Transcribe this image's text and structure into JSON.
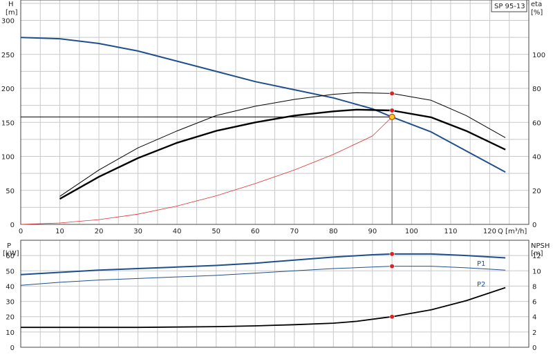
{
  "chart_data": [
    {
      "type": "line",
      "title": "SP 95-13",
      "xlabel": "Q [m³/h]",
      "ylabel_left": "H",
      "ylabel_left_unit": "[m]",
      "ylabel_right": "eta",
      "ylabel_right_unit": "[%]",
      "xlim": [
        0,
        130
      ],
      "ylim_left": [
        0,
        330
      ],
      "ylim_right": [
        0,
        132
      ],
      "grid": true,
      "x_ticks": [
        "0",
        "10",
        "20",
        "30",
        "40",
        "50",
        "60",
        "70",
        "80",
        "90",
        "100",
        "110",
        "120"
      ],
      "y_ticks_left": [
        "0",
        "50",
        "100",
        "150",
        "200",
        "250",
        "300"
      ],
      "y_ticks_right": [
        "0",
        "20",
        "40",
        "60",
        "80",
        "100"
      ],
      "series": [
        {
          "axis": "left",
          "color": "#1f4e8c",
          "x": [
            0,
            10,
            20,
            30,
            40,
            50,
            60,
            70,
            80,
            90,
            95,
            105,
            114,
            124
          ],
          "values": [
            275,
            273,
            266,
            255,
            240,
            225,
            210,
            198,
            186,
            170,
            158,
            136,
            108,
            77
          ]
        },
        {
          "axis": "right",
          "color": "#000000",
          "x": [
            10,
            20,
            30,
            40,
            50,
            60,
            70,
            80,
            86,
            95,
            105,
            114,
            124
          ],
          "values": [
            15,
            28,
            39,
            48,
            55,
            60,
            64,
            66.5,
            67.5,
            67,
            63,
            55,
            44
          ]
        },
        {
          "axis": "right",
          "color": "#000000",
          "x": [
            10,
            20,
            30,
            40,
            50,
            60,
            70,
            80,
            86,
            95,
            105,
            114,
            124
          ],
          "values": [
            16.5,
            32,
            45,
            55,
            64,
            69.5,
            73.5,
            76.5,
            77.5,
            77,
            73,
            64,
            51
          ]
        },
        {
          "axis": "left",
          "color": "#e03030",
          "x": [
            0,
            10,
            20,
            30,
            40,
            50,
            60,
            70,
            80,
            90,
            95
          ],
          "values": [
            0,
            2,
            7,
            15,
            27,
            42,
            60,
            80,
            103,
            130,
            158
          ]
        }
      ],
      "duty_point": {
        "x": 95,
        "y": 158
      },
      "markers": [
        {
          "axis": "right",
          "x": 95,
          "y": 77
        },
        {
          "axis": "right",
          "x": 95,
          "y": 67
        }
      ]
    },
    {
      "type": "line",
      "xlabel": "",
      "ylabel_left": "P",
      "ylabel_left_unit": "[kW]",
      "ylabel_right": "NPSH",
      "ylabel_right_unit": "[m]",
      "xlim": [
        0,
        130
      ],
      "ylim_left": [
        0,
        70
      ],
      "ylim_right": [
        0,
        14
      ],
      "grid": true,
      "y_ticks_left": [
        "0",
        "10",
        "20",
        "30",
        "40",
        "50",
        "60"
      ],
      "y_ticks_right": [
        "0",
        "2",
        "4",
        "6",
        "8",
        "10",
        "12"
      ],
      "series": [
        {
          "name": "P1",
          "axis": "left",
          "color": "#1f4e8c",
          "x": [
            0,
            10,
            20,
            30,
            40,
            50,
            60,
            70,
            80,
            90,
            95,
            105,
            114,
            124
          ],
          "values": [
            47.5,
            49,
            50.5,
            51.5,
            52.5,
            53.5,
            55,
            57,
            59,
            60.5,
            61,
            61,
            60,
            58.5
          ]
        },
        {
          "name": "P2",
          "axis": "left",
          "color": "#1f4e8c",
          "x": [
            0,
            10,
            20,
            30,
            40,
            50,
            60,
            70,
            80,
            90,
            95,
            105,
            114,
            124
          ],
          "values": [
            40.5,
            42.5,
            44,
            45,
            46,
            47,
            48.5,
            50,
            51.5,
            52.5,
            53,
            53,
            52,
            50.5
          ]
        },
        {
          "axis": "right",
          "color": "#000000",
          "x": [
            0,
            10,
            20,
            30,
            40,
            50,
            60,
            70,
            80,
            86,
            95,
            105,
            114,
            124
          ],
          "values": [
            2.6,
            2.6,
            2.6,
            2.6,
            2.65,
            2.7,
            2.8,
            2.95,
            3.15,
            3.4,
            4.0,
            4.9,
            6.1,
            7.8
          ]
        }
      ],
      "markers": [
        {
          "axis": "left",
          "x": 95,
          "y": 61
        },
        {
          "axis": "left",
          "x": 95,
          "y": 53
        },
        {
          "axis": "right",
          "x": 95,
          "y": 4.0
        }
      ]
    }
  ]
}
